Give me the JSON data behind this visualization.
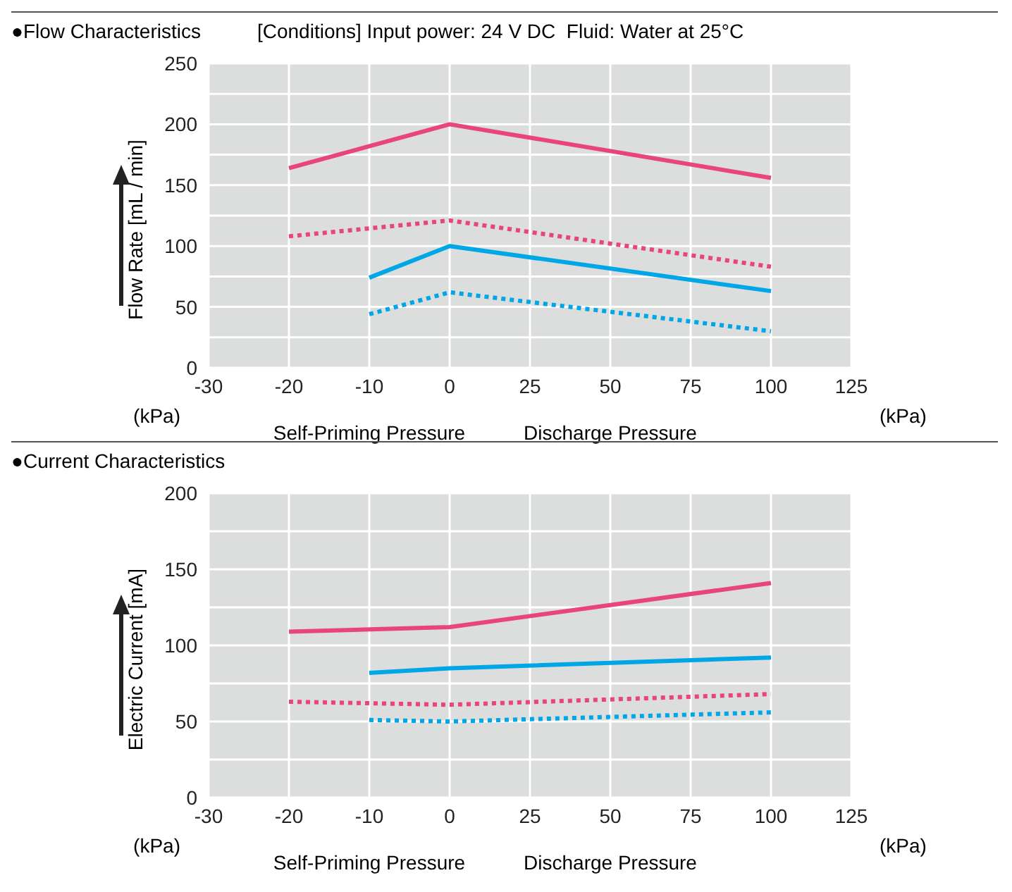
{
  "chart_data": [
    {
      "type": "line",
      "title": "●Flow Characteristics",
      "subtitle": "[Conditions] Input power: 24 V DC  Fluid: Water at 25°C",
      "ylabel": "Flow Rate [mL / min]",
      "annotations": [
        "(kPa)",
        "(kPa)",
        "Self-Priming Pressure",
        "Discharge Pressure"
      ],
      "categories": [
        "-30",
        "-20",
        "-10",
        "0",
        "25",
        "50",
        "75",
        "100",
        "125"
      ],
      "series": [
        {
          "color": "#e8457a",
          "line_style": "solid",
          "values": [
            null,
            164,
            null,
            200,
            null,
            null,
            null,
            156,
            null
          ]
        },
        {
          "color": "#e8457a",
          "line_style": "dotted",
          "values": [
            null,
            108,
            null,
            121,
            null,
            null,
            null,
            83,
            null
          ]
        },
        {
          "color": "#00a7e6",
          "line_style": "solid",
          "values": [
            null,
            null,
            74,
            100,
            null,
            null,
            null,
            63,
            null
          ]
        },
        {
          "color": "#00a7e6",
          "line_style": "dotted",
          "values": [
            null,
            null,
            44,
            62,
            null,
            null,
            null,
            30,
            null
          ]
        }
      ],
      "ylim": [
        0,
        250
      ],
      "yticks": [
        0,
        {
          "value": 25,
          "label": null
        },
        50,
        {
          "value": 75,
          "label": null
        },
        100,
        {
          "value": 125,
          "label": null
        },
        150,
        {
          "value": 175,
          "label": null
        },
        200,
        {
          "value": 225,
          "label": null
        },
        250
      ],
      "grid": true,
      "legend": false,
      "marker": "none"
    },
    {
      "type": "line",
      "title": "●Current Characteristics",
      "ylabel": "Electric Current [mA]",
      "annotations": [
        "(kPa)",
        "(kPa)",
        "Self-Priming Pressure",
        "Discharge Pressure"
      ],
      "categories": [
        "-30",
        "-20",
        "-10",
        "0",
        "25",
        "50",
        "75",
        "100",
        "125"
      ],
      "series": [
        {
          "color": "#e8457a",
          "line_style": "solid",
          "values": [
            null,
            109,
            null,
            112,
            null,
            null,
            null,
            141,
            null
          ]
        },
        {
          "color": "#00a7e6",
          "line_style": "solid",
          "values": [
            null,
            null,
            82,
            85,
            null,
            null,
            null,
            92,
            null
          ]
        },
        {
          "color": "#e8457a",
          "line_style": "dotted",
          "values": [
            null,
            63,
            null,
            61,
            null,
            null,
            null,
            68,
            null
          ]
        },
        {
          "color": "#00a7e6",
          "line_style": "dotted",
          "values": [
            null,
            null,
            51,
            50,
            null,
            null,
            null,
            56,
            null
          ]
        }
      ],
      "ylim": [
        0,
        200
      ],
      "yticks": [
        0,
        {
          "value": 25,
          "label": null
        },
        50,
        {
          "value": 75,
          "label": null
        },
        100,
        {
          "value": 125,
          "label": null
        },
        150,
        {
          "value": 175,
          "label": null
        },
        200
      ],
      "grid": true,
      "legend": false,
      "marker": "none"
    }
  ]
}
